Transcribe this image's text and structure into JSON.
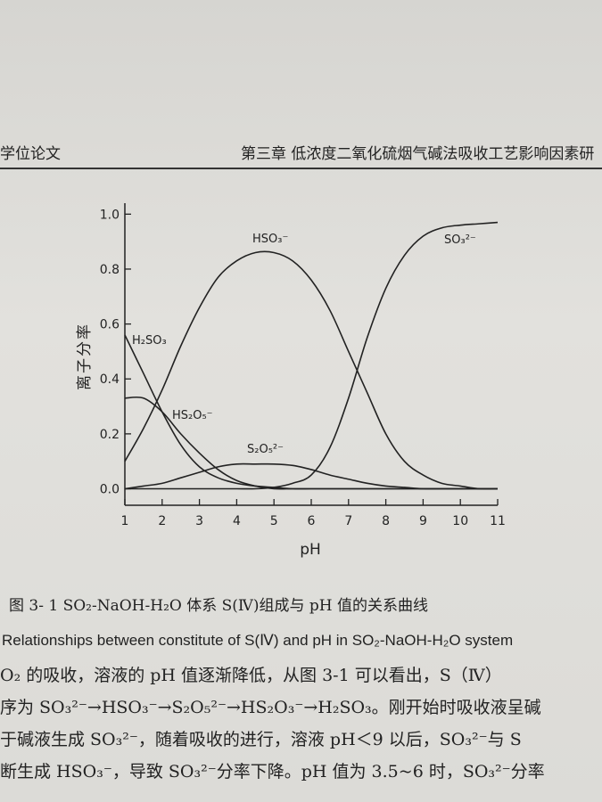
{
  "header": {
    "left": "学位论文",
    "right": "第三章 低浓度二氧化硫烟气碱法吸收工艺影响因素研"
  },
  "chart_data": {
    "type": "line",
    "ylabel": "离子分率",
    "xlabel": "pH",
    "x": [
      1,
      1.5,
      2,
      2.5,
      3,
      3.5,
      4,
      4.5,
      5,
      5.5,
      6,
      6.5,
      7,
      7.5,
      8,
      8.5,
      9,
      9.5,
      10,
      10.5,
      11
    ],
    "series": [
      {
        "name": "H₂SO₃",
        "color": "#222222",
        "values": [
          0.56,
          0.42,
          0.28,
          0.16,
          0.08,
          0.04,
          0.02,
          0.01,
          0.005,
          0,
          0,
          0,
          0,
          0,
          0,
          0,
          0,
          0,
          0,
          0,
          0
        ]
      },
      {
        "name": "HSO₃⁻",
        "color": "#222222",
        "values": [
          0.1,
          0.22,
          0.36,
          0.52,
          0.66,
          0.77,
          0.83,
          0.86,
          0.86,
          0.83,
          0.76,
          0.65,
          0.5,
          0.35,
          0.2,
          0.1,
          0.05,
          0.02,
          0.01,
          0,
          0
        ]
      },
      {
        "name": "SO₃²⁻",
        "color": "#222222",
        "values": [
          0,
          0,
          0,
          0,
          0,
          0,
          0,
          0,
          0.005,
          0.02,
          0.05,
          0.15,
          0.33,
          0.55,
          0.73,
          0.85,
          0.92,
          0.95,
          0.96,
          0.965,
          0.97
        ]
      },
      {
        "name": "HS₂O₅⁻",
        "color": "#222222",
        "values": [
          0.33,
          0.33,
          0.28,
          0.2,
          0.13,
          0.07,
          0.03,
          0.01,
          0,
          0,
          0,
          0,
          0,
          0,
          0,
          0,
          0,
          0,
          0,
          0,
          0
        ]
      },
      {
        "name": "S₂O₅²⁻",
        "color": "#222222",
        "values": [
          0,
          0.01,
          0.02,
          0.04,
          0.06,
          0.08,
          0.09,
          0.09,
          0.09,
          0.085,
          0.07,
          0.05,
          0.035,
          0.02,
          0.01,
          0.005,
          0,
          0,
          0,
          0,
          0
        ]
      }
    ],
    "xlim": [
      1,
      11
    ],
    "xticks": [
      1,
      2,
      3,
      4,
      5,
      6,
      7,
      8,
      9,
      10,
      11
    ],
    "ylim": [
      -0.06,
      1.04
    ],
    "yticks": [
      {
        "value": 0,
        "label": "0.0"
      },
      0.2,
      0.4,
      0.6,
      0.8,
      {
        "value": 1,
        "label": "1.0"
      }
    ]
  },
  "caption": {
    "zh": "图 3- 1 SO₂-NaOH-H₂O 体系 S(Ⅳ)组成与 pH 值的关系曲线",
    "en": "Relationships between constitute of S(Ⅳ) and pH in SO₂-NaOH-H₂O system"
  },
  "body": [
    "O₂ 的吸收，溶液的 pH 值逐渐降低，从图 3-1 可以看出，S（Ⅳ）",
    "序为 SO₃²⁻→HSO₃⁻→S₂O₅²⁻→HS₂O₃⁻→H₂SO₃。刚开始时吸收液呈碱",
    "于碱液生成 SO₃²⁻，随着吸收的进行，溶液 pH＜9 以后，SO₃²⁻与 S",
    "断生成 HSO₃⁻，导致 SO₃²⁻分率下降。pH 值为 3.5~6 时，SO₃²⁻分率"
  ]
}
